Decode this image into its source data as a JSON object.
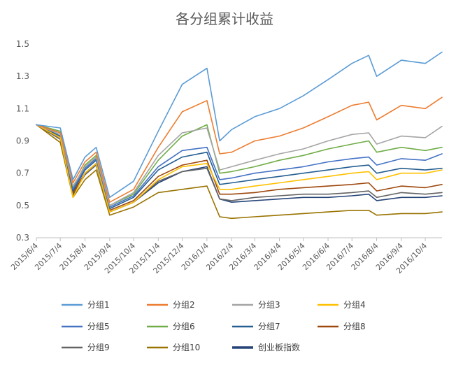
{
  "chart_data": {
    "type": "line",
    "title": "各分组累计收益",
    "xlabel": "",
    "ylabel": "",
    "ylim": [
      0.3,
      1.5
    ],
    "yticks": [
      "0.3",
      "0.5",
      "0.7",
      "0.9",
      "1.1",
      "1.3",
      "1.5"
    ],
    "grid": false,
    "legend_position": "bottom",
    "x_tick_labels": [
      "2015/6/4",
      "2015/7/4",
      "2015/8/4",
      "2015/9/4",
      "2015/10/4",
      "2015/11/4",
      "2015/12/4",
      "2016/1/4",
      "2016/2/4",
      "2016/3/4",
      "2016/4/4",
      "2016/5/4",
      "2016/6/4",
      "2016/7/4",
      "2016/8/4",
      "2016/9/4",
      "2016/10/4"
    ],
    "x": [
      "2015/6/4",
      "2015/7/4",
      "2015/7/20",
      "2015/8/4",
      "2015/8/18",
      "2015/9/4",
      "2015/10/4",
      "2015/11/4",
      "2015/12/4",
      "2016/1/4",
      "2016/1/20",
      "2016/2/4",
      "2016/3/4",
      "2016/4/4",
      "2016/5/4",
      "2016/6/4",
      "2016/7/4",
      "2016/7/25",
      "2016/8/4",
      "2016/9/4",
      "2016/10/4",
      "2016/10/25"
    ],
    "series": [
      {
        "name": "分组1",
        "color": "#5b9bd5",
        "values": [
          1.0,
          0.98,
          0.66,
          0.8,
          0.86,
          0.55,
          0.65,
          0.96,
          1.25,
          1.35,
          0.9,
          0.97,
          1.05,
          1.1,
          1.18,
          1.28,
          1.38,
          1.43,
          1.3,
          1.4,
          1.38,
          1.45
        ]
      },
      {
        "name": "分组2",
        "color": "#ed7d31",
        "values": [
          1.0,
          0.95,
          0.64,
          0.77,
          0.83,
          0.52,
          0.6,
          0.86,
          1.08,
          1.15,
          0.82,
          0.83,
          0.9,
          0.93,
          0.98,
          1.05,
          1.12,
          1.14,
          1.03,
          1.12,
          1.1,
          1.17
        ]
      },
      {
        "name": "分组3",
        "color": "#a5a5a5",
        "values": [
          1.0,
          0.94,
          0.62,
          0.74,
          0.8,
          0.5,
          0.58,
          0.81,
          0.95,
          0.98,
          0.72,
          0.74,
          0.78,
          0.82,
          0.85,
          0.9,
          0.94,
          0.95,
          0.88,
          0.93,
          0.92,
          0.99
        ]
      },
      {
        "name": "分组4",
        "color": "#ffc000",
        "values": [
          1.0,
          0.92,
          0.55,
          0.7,
          0.76,
          0.46,
          0.52,
          0.66,
          0.74,
          0.76,
          0.6,
          0.6,
          0.62,
          0.64,
          0.66,
          0.68,
          0.7,
          0.71,
          0.66,
          0.7,
          0.7,
          0.72
        ]
      },
      {
        "name": "分组5",
        "color": "#4472c4",
        "values": [
          1.0,
          0.95,
          0.6,
          0.73,
          0.79,
          0.49,
          0.56,
          0.74,
          0.84,
          0.86,
          0.66,
          0.67,
          0.7,
          0.72,
          0.74,
          0.77,
          0.79,
          0.8,
          0.75,
          0.79,
          0.78,
          0.82
        ]
      },
      {
        "name": "分组6",
        "color": "#70ad47",
        "values": [
          1.0,
          0.96,
          0.61,
          0.75,
          0.81,
          0.5,
          0.57,
          0.78,
          0.93,
          1.0,
          0.7,
          0.71,
          0.74,
          0.78,
          0.81,
          0.85,
          0.88,
          0.9,
          0.83,
          0.86,
          0.84,
          0.86
        ]
      },
      {
        "name": "分组7",
        "color": "#255e91",
        "values": [
          1.0,
          0.93,
          0.59,
          0.72,
          0.78,
          0.48,
          0.55,
          0.72,
          0.8,
          0.83,
          0.63,
          0.64,
          0.66,
          0.68,
          0.7,
          0.72,
          0.74,
          0.75,
          0.7,
          0.73,
          0.72,
          0.73
        ]
      },
      {
        "name": "分组8",
        "color": "#9e480e",
        "values": [
          1.0,
          0.92,
          0.58,
          0.7,
          0.76,
          0.47,
          0.53,
          0.68,
          0.75,
          0.78,
          0.57,
          0.57,
          0.58,
          0.6,
          0.61,
          0.62,
          0.63,
          0.64,
          0.59,
          0.62,
          0.61,
          0.63
        ]
      },
      {
        "name": "分组9",
        "color": "#636363",
        "values": [
          1.0,
          0.91,
          0.57,
          0.69,
          0.75,
          0.46,
          0.52,
          0.65,
          0.71,
          0.73,
          0.54,
          0.53,
          0.55,
          0.56,
          0.57,
          0.57,
          0.58,
          0.59,
          0.55,
          0.58,
          0.57,
          0.58
        ]
      },
      {
        "name": "分组10",
        "color": "#997300",
        "values": [
          1.0,
          0.89,
          0.55,
          0.66,
          0.72,
          0.44,
          0.49,
          0.58,
          0.6,
          0.62,
          0.43,
          0.42,
          0.43,
          0.44,
          0.45,
          0.46,
          0.47,
          0.47,
          0.44,
          0.45,
          0.45,
          0.46
        ]
      },
      {
        "name": "创业板指数",
        "color": "#264478",
        "values": [
          1.0,
          0.92,
          0.56,
          0.7,
          0.76,
          0.46,
          0.52,
          0.64,
          0.71,
          0.74,
          0.54,
          0.52,
          0.53,
          0.54,
          0.55,
          0.55,
          0.56,
          0.57,
          0.53,
          0.55,
          0.55,
          0.56
        ]
      }
    ]
  }
}
